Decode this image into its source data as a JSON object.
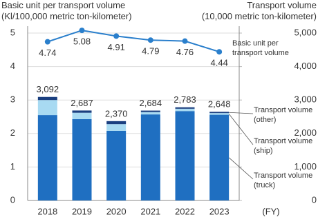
{
  "chart_data": {
    "type": "bar",
    "ylabel_lines": [
      "Basic unit per transport volume",
      "(Kl/100,000 metric ton-kilometer)"
    ],
    "y2label_lines": [
      "Transport volume",
      "(10,000 metric ton-kilometer)"
    ],
    "xlabel": "(FY)",
    "categories": [
      "2018",
      "2019",
      "2020",
      "2021",
      "2022",
      "2023"
    ],
    "ylim": [
      0,
      5
    ],
    "yticks": [
      0,
      1,
      2,
      3,
      4,
      5
    ],
    "y2lim": [
      0,
      5000
    ],
    "y2ticks": [
      0,
      {
        "value": 1000,
        "label": "1,000"
      },
      {
        "value": 2000,
        "label": "2,000"
      },
      {
        "value": 3000,
        "label": "3,000"
      },
      {
        "value": 4000,
        "label": "4,000"
      },
      {
        "value": 5000,
        "label": "5,000"
      }
    ],
    "grid": true,
    "series": [
      {
        "name": "Transport volume (truck)",
        "type": "bar",
        "axis": "y2",
        "color": "#1f6fc1",
        "values": [
          2550,
          2430,
          2080,
          2570,
          2670,
          2560
        ]
      },
      {
        "name": "Transport volume (ship)",
        "type": "bar",
        "axis": "y2",
        "color": "#a8daf2",
        "values": [
          450,
          190,
          200,
          70,
          70,
          50
        ]
      },
      {
        "name": "Transport volume (other)",
        "type": "bar",
        "axis": "y2",
        "color": "#1a3f80",
        "values": [
          92,
          67,
          90,
          44,
          43,
          38
        ]
      },
      {
        "name": "Basic unit per transport volume",
        "type": "line",
        "color": "#2a7fcc",
        "values": [
          4.74,
          5.08,
          4.91,
          4.79,
          4.76,
          4.44
        ]
      }
    ],
    "totals": {
      "values": [
        3092,
        2687,
        2370,
        2684,
        2783,
        2648
      ],
      "value_labels": [
        "3,092",
        "2,687",
        "2,370",
        "2,684",
        "2,783",
        "2,648"
      ]
    }
  }
}
